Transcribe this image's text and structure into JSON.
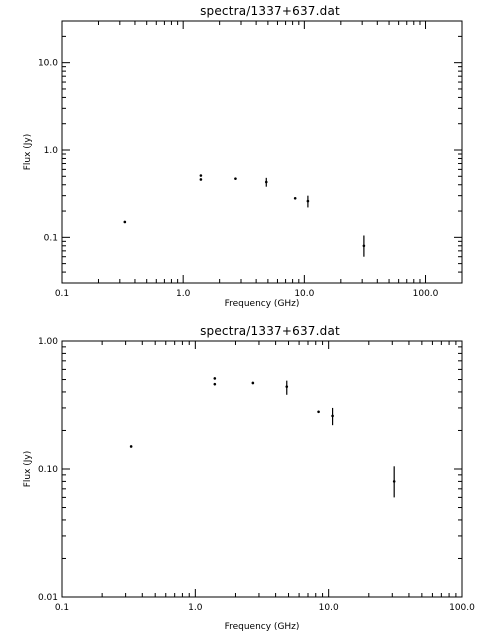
{
  "chart_data": [
    {
      "type": "scatter",
      "title": "spectra/1337+637.dat",
      "xlabel": "Frequency (GHz)",
      "ylabel": "Flux (Jy)",
      "xscale": "log",
      "yscale": "log",
      "xlim": [
        0.1,
        200
      ],
      "ylim": [
        0.03,
        30
      ],
      "x_ticks": [
        0.1,
        1.0,
        10.0,
        100.0
      ],
      "x_tick_labels": [
        "0.1",
        "1.0",
        "10.0",
        "100.0"
      ],
      "y_ticks": [
        0.1,
        1.0,
        10.0
      ],
      "y_tick_labels": [
        "0.1",
        "1.0",
        "10.0"
      ],
      "points": [
        {
          "x": 0.33,
          "y": 0.15,
          "ylo": 0.147,
          "yhi": 0.153
        },
        {
          "x": 1.4,
          "y": 0.46,
          "ylo": 0.45,
          "yhi": 0.47
        },
        {
          "x": 1.4,
          "y": 0.51,
          "ylo": 0.5,
          "yhi": 0.52
        },
        {
          "x": 2.7,
          "y": 0.47,
          "ylo": 0.46,
          "yhi": 0.48
        },
        {
          "x": 4.85,
          "y": 0.43,
          "ylo": 0.38,
          "yhi": 0.48
        },
        {
          "x": 8.4,
          "y": 0.28,
          "ylo": 0.275,
          "yhi": 0.285
        },
        {
          "x": 10.7,
          "y": 0.26,
          "ylo": 0.22,
          "yhi": 0.3
        },
        {
          "x": 31,
          "y": 0.08,
          "ylo": 0.06,
          "yhi": 0.105
        }
      ]
    },
    {
      "type": "scatter",
      "title": "spectra/1337+637.dat",
      "xlabel": "Frequency (GHz)",
      "ylabel": "Flux (Jy)",
      "xscale": "log",
      "yscale": "log",
      "xlim": [
        0.1,
        100
      ],
      "ylim": [
        0.01,
        1.0
      ],
      "x_ticks": [
        0.1,
        1.0,
        10.0,
        100.0
      ],
      "x_tick_labels": [
        "0.1",
        "1.0",
        "10.0",
        "100.0"
      ],
      "y_ticks": [
        0.01,
        0.1,
        1.0
      ],
      "y_tick_labels": [
        "0.01",
        "0.10",
        "1.00"
      ],
      "points": [
        {
          "x": 0.33,
          "y": 0.15,
          "ylo": 0.147,
          "yhi": 0.153
        },
        {
          "x": 1.4,
          "y": 0.46,
          "ylo": 0.45,
          "yhi": 0.47
        },
        {
          "x": 1.4,
          "y": 0.51,
          "ylo": 0.5,
          "yhi": 0.52
        },
        {
          "x": 2.7,
          "y": 0.47,
          "ylo": 0.46,
          "yhi": 0.48
        },
        {
          "x": 4.85,
          "y": 0.44,
          "ylo": 0.38,
          "yhi": 0.49
        },
        {
          "x": 8.4,
          "y": 0.28,
          "ylo": 0.275,
          "yhi": 0.285
        },
        {
          "x": 10.7,
          "y": 0.26,
          "ylo": 0.22,
          "yhi": 0.3
        },
        {
          "x": 31,
          "y": 0.08,
          "ylo": 0.06,
          "yhi": 0.105
        }
      ]
    }
  ]
}
